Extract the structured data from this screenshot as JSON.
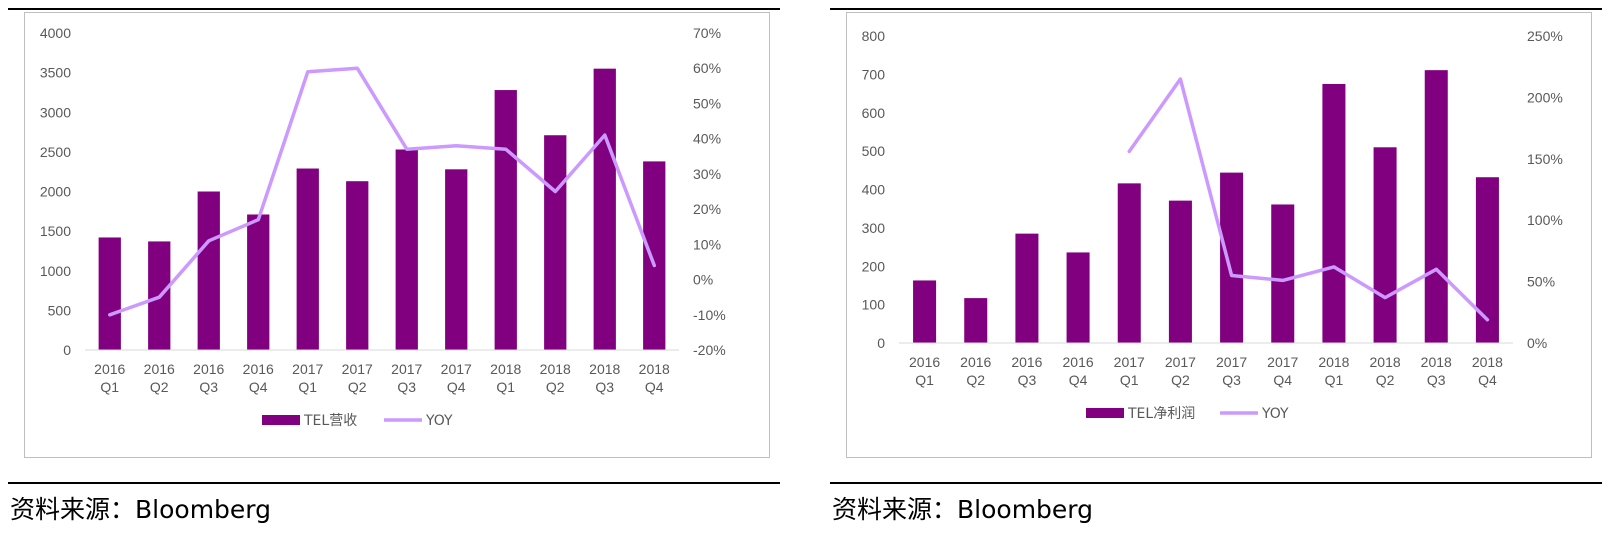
{
  "colors": {
    "bar": "#800080",
    "line": "#cc99ff",
    "axis": "#d9d9d9",
    "text": "#595959"
  },
  "chart_data": [
    {
      "type": "bar",
      "title": "",
      "categories": [
        [
          "2016",
          "Q1"
        ],
        [
          "2016",
          "Q2"
        ],
        [
          "2016",
          "Q3"
        ],
        [
          "2016",
          "Q4"
        ],
        [
          "2017",
          "Q1"
        ],
        [
          "2017",
          "Q2"
        ],
        [
          "2017",
          "Q3"
        ],
        [
          "2017",
          "Q4"
        ],
        [
          "2018",
          "Q1"
        ],
        [
          "2018",
          "Q2"
        ],
        [
          "2018",
          "Q3"
        ],
        [
          "2018",
          "Q4"
        ]
      ],
      "series": [
        {
          "name": "TEL营收",
          "type": "bar",
          "axis": "left",
          "values": [
            1420,
            1370,
            2000,
            1710,
            2290,
            2130,
            2530,
            2280,
            3280,
            2710,
            3550,
            2380
          ]
        },
        {
          "name": "YOY",
          "type": "line",
          "axis": "right",
          "values": [
            -10,
            -5,
            11,
            17,
            59,
            60,
            37,
            38,
            37,
            25,
            41,
            4
          ]
        }
      ],
      "ylim_left": [
        0,
        4000
      ],
      "ystep_left": 500,
      "ylim_right": [
        -20,
        70
      ],
      "ystep_right": 10,
      "right_format": "percent",
      "legend_position": "bottom"
    },
    {
      "type": "bar",
      "title": "",
      "categories": [
        [
          "2016",
          "Q1"
        ],
        [
          "2016",
          "Q2"
        ],
        [
          "2016",
          "Q3"
        ],
        [
          "2016",
          "Q4"
        ],
        [
          "2017",
          "Q1"
        ],
        [
          "2017",
          "Q2"
        ],
        [
          "2017",
          "Q3"
        ],
        [
          "2017",
          "Q4"
        ],
        [
          "2018",
          "Q1"
        ],
        [
          "2018",
          "Q2"
        ],
        [
          "2018",
          "Q3"
        ],
        [
          "2018",
          "Q4"
        ]
      ],
      "series": [
        {
          "name": "TEL净利润",
          "type": "bar",
          "axis": "left",
          "values": [
            163,
            117,
            285,
            236,
            416,
            371,
            444,
            361,
            675,
            510,
            711,
            432
          ]
        },
        {
          "name": "YOY",
          "type": "line",
          "axis": "right",
          "values": [
            null,
            null,
            null,
            null,
            156,
            215,
            55,
            51,
            62,
            37,
            60,
            19
          ]
        }
      ],
      "ylim_left": [
        0,
        800
      ],
      "ystep_left": 100,
      "ylim_right": [
        0,
        250
      ],
      "ystep_right": 50,
      "right_format": "percent",
      "legend_position": "bottom"
    }
  ],
  "sources": [
    "资料来源：Bloomberg",
    "资料来源：Bloomberg"
  ]
}
